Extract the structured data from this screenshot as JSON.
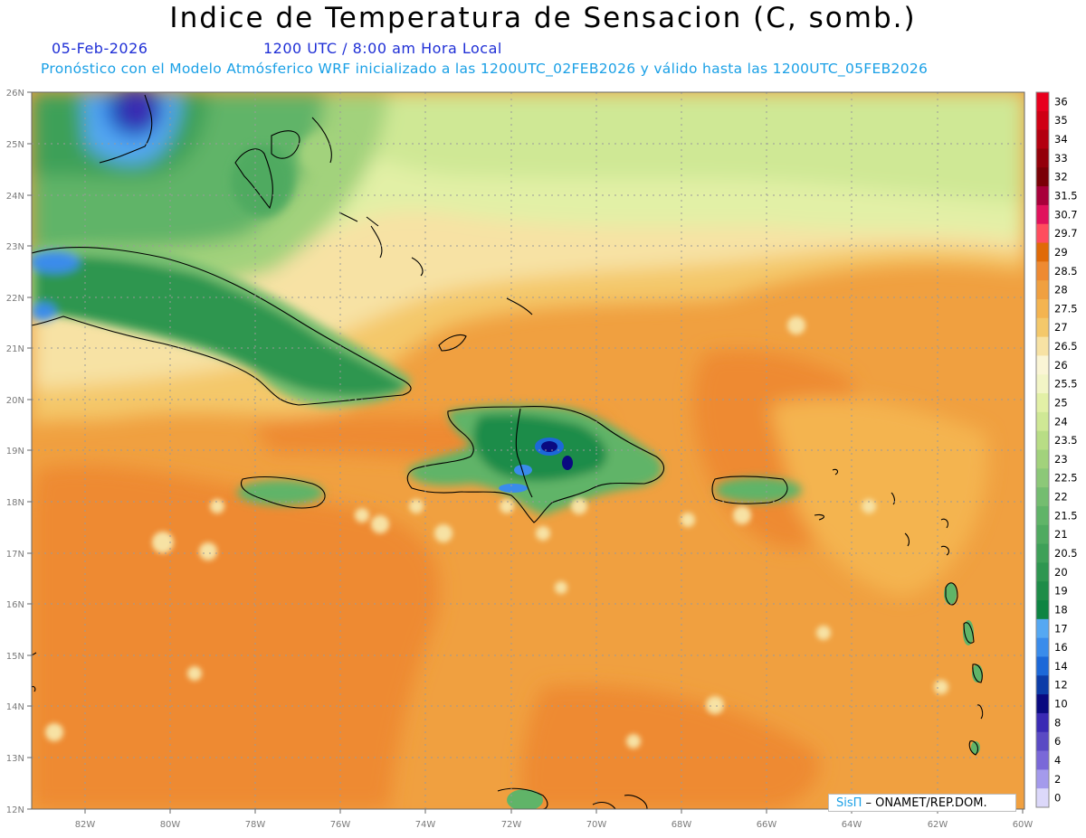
{
  "title": "Indice de Temperatura de Sensacion (C, somb.)",
  "date": "05-Feb-2026",
  "time": "1200 UTC / 8:00 am Hora Local",
  "forecast": "Pronóstico con el Modelo Atmósferico WRF inicializado a las 1200UTC_02FEB2026 y válido hasta las  1200UTC_05FEB2026",
  "credit": {
    "brand": "SisΠ",
    "text": " – ONAMET/REP.DOM."
  },
  "map": {
    "lon_range": [
      -83.2,
      -60
    ],
    "lat_range": [
      12,
      26
    ],
    "lon_ticks": [
      "82W",
      "80W",
      "78W",
      "76W",
      "74W",
      "72W",
      "70W",
      "68W",
      "66W",
      "64W",
      "62W",
      "60W"
    ],
    "lat_ticks": [
      "26N",
      "25N",
      "24N",
      "23N",
      "22N",
      "21N",
      "20N",
      "19N",
      "18N",
      "17N",
      "16N",
      "15N",
      "14N",
      "13N",
      "12N"
    ]
  },
  "colorbar": {
    "labels": [
      "36",
      "35",
      "34",
      "33",
      "32",
      "31.5",
      "30.7",
      "29.7",
      "29",
      "28.5",
      "28",
      "27.5",
      "27",
      "26.5",
      "26",
      "25.5",
      "25",
      "24",
      "23.5",
      "23",
      "22.5",
      "22",
      "21.5",
      "21",
      "20.5",
      "20",
      "19",
      "18",
      "17",
      "16",
      "14",
      "12",
      "10",
      "8",
      "6",
      "4",
      "2",
      "0"
    ],
    "colors": [
      "#e8001e",
      "#cf0014",
      "#b30010",
      "#93000a",
      "#7a0006",
      "#a8003a",
      "#e0125c",
      "#ff4d5e",
      "#e06a08",
      "#ee8a32",
      "#f0a040",
      "#f4b450",
      "#f4c86a",
      "#f7e2a4",
      "#faf5d5",
      "#f2f5c6",
      "#e2f0a6",
      "#cfe895",
      "#b8dd85",
      "#a2d27c",
      "#8cc878",
      "#74bd70",
      "#60b468",
      "#4faa60",
      "#3ea058",
      "#2e9650",
      "#1e8c48",
      "#0e8442",
      "#55a8f2",
      "#3a8ceb",
      "#1c68d8",
      "#0c3ca8",
      "#0a0a80",
      "#3a2ab4",
      "#5a4ac4",
      "#7a68d8",
      "#a49aec",
      "#dcd8fa"
    ]
  },
  "icons": {
    "north_arrow": "none"
  }
}
